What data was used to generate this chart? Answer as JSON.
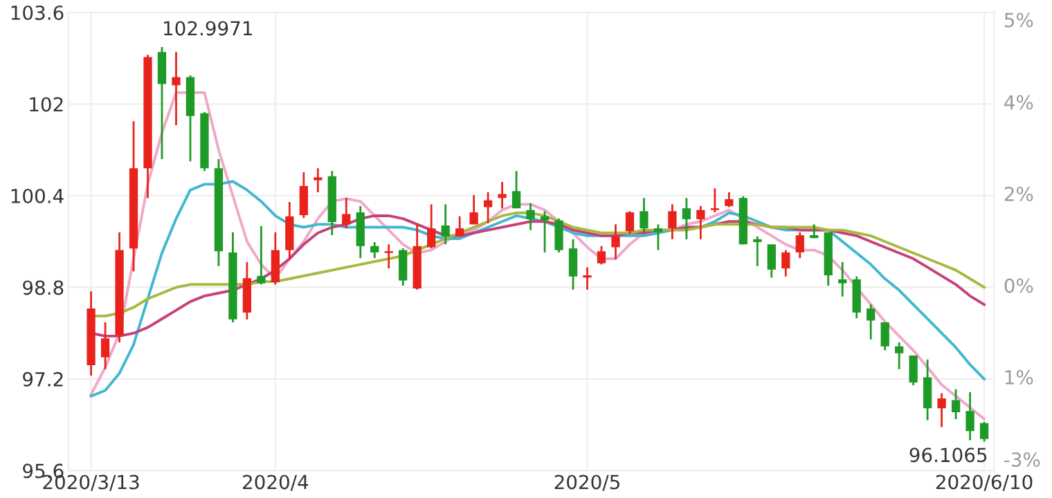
{
  "chart_data": {
    "type": "candlestick",
    "categories": [
      "2020/3/13",
      null,
      null,
      null,
      null,
      null,
      null,
      null,
      null,
      null,
      null,
      null,
      null,
      "2020/4",
      null,
      null,
      null,
      null,
      null,
      null,
      null,
      null,
      null,
      null,
      null,
      null,
      null,
      null,
      null,
      null,
      null,
      null,
      null,
      null,
      null,
      "2020/5",
      null,
      null,
      null,
      null,
      null,
      null,
      null,
      null,
      null,
      null,
      null,
      null,
      null,
      null,
      null,
      null,
      null,
      null,
      null,
      null,
      null,
      null,
      null,
      null,
      null,
      null,
      null,
      "2020/6/10"
    ],
    "ohlc": [
      [
        97.44,
        98.73,
        97.26,
        98.43
      ],
      [
        97.58,
        98.19,
        97.37,
        97.91
      ],
      [
        97.96,
        99.76,
        97.84,
        99.45
      ],
      [
        99.48,
        101.7,
        99.08,
        100.88
      ],
      [
        100.88,
        102.86,
        100.36,
        102.82
      ],
      [
        102.91,
        102.9971,
        101.04,
        102.35
      ],
      [
        102.33,
        102.91,
        101.63,
        102.47
      ],
      [
        102.47,
        102.5,
        101.0,
        101.79
      ],
      [
        101.84,
        101.86,
        100.83,
        100.88
      ],
      [
        100.88,
        101.04,
        99.17,
        99.43
      ],
      [
        99.41,
        99.76,
        98.19,
        98.24
      ],
      [
        98.36,
        99.24,
        98.24,
        98.96
      ],
      [
        99.0,
        99.87,
        98.85,
        98.87
      ],
      [
        98.89,
        99.76,
        98.85,
        99.45
      ],
      [
        99.45,
        100.29,
        99.29,
        100.04
      ],
      [
        100.06,
        100.81,
        100.01,
        100.57
      ],
      [
        100.67,
        100.88,
        100.46,
        100.72
      ],
      [
        100.74,
        100.83,
        99.71,
        99.94
      ],
      [
        99.9,
        100.36,
        99.83,
        100.08
      ],
      [
        100.11,
        100.22,
        99.31,
        99.52
      ],
      [
        99.52,
        99.59,
        99.31,
        99.41
      ],
      [
        99.4,
        99.55,
        99.13,
        99.43
      ],
      [
        99.45,
        99.48,
        98.83,
        98.92
      ],
      [
        98.78,
        99.9,
        98.76,
        99.52
      ],
      [
        99.5,
        100.25,
        99.48,
        99.83
      ],
      [
        99.88,
        100.25,
        99.55,
        99.69
      ],
      [
        99.69,
        100.04,
        99.69,
        99.83
      ],
      [
        99.9,
        100.41,
        99.9,
        100.11
      ],
      [
        100.2,
        100.46,
        99.92,
        100.32
      ],
      [
        100.36,
        100.64,
        100.18,
        100.43
      ],
      [
        100.48,
        100.83,
        100.18,
        100.18
      ],
      [
        100.15,
        100.27,
        99.8,
        99.99
      ],
      [
        100.04,
        100.13,
        99.41,
        99.97
      ],
      [
        99.97,
        100.0,
        99.41,
        99.45
      ],
      [
        99.48,
        99.64,
        98.76,
        98.99
      ],
      [
        98.97,
        99.15,
        98.76,
        99.01
      ],
      [
        99.22,
        99.52,
        99.2,
        99.43
      ],
      [
        99.5,
        99.9,
        99.29,
        99.69
      ],
      [
        99.78,
        100.13,
        99.73,
        100.11
      ],
      [
        100.13,
        100.36,
        99.76,
        99.83
      ],
      [
        99.83,
        99.9,
        99.45,
        99.76
      ],
      [
        99.83,
        100.25,
        99.64,
        100.13
      ],
      [
        100.18,
        100.36,
        99.64,
        99.99
      ],
      [
        99.99,
        100.22,
        99.64,
        100.15
      ],
      [
        100.15,
        100.53,
        100.11,
        100.18
      ],
      [
        100.22,
        100.46,
        100.2,
        100.34
      ],
      [
        100.36,
        100.39,
        99.55,
        99.55
      ],
      [
        99.64,
        99.69,
        99.17,
        99.59
      ],
      [
        99.55,
        99.55,
        98.97,
        99.11
      ],
      [
        99.13,
        99.45,
        98.99,
        99.41
      ],
      [
        99.41,
        99.76,
        99.31,
        99.71
      ],
      [
        99.71,
        99.9,
        99.66,
        99.66
      ],
      [
        99.76,
        99.76,
        98.83,
        99.01
      ],
      [
        98.94,
        99.24,
        98.64,
        98.87
      ],
      [
        98.94,
        98.99,
        98.26,
        98.36
      ],
      [
        98.43,
        98.5,
        97.89,
        98.22
      ],
      [
        98.19,
        98.19,
        97.7,
        97.77
      ],
      [
        97.77,
        97.84,
        97.37,
        97.65
      ],
      [
        97.61,
        97.61,
        97.09,
        97.14
      ],
      [
        97.23,
        97.54,
        96.48,
        96.69
      ],
      [
        96.69,
        96.95,
        96.36,
        96.86
      ],
      [
        96.83,
        97.02,
        96.5,
        96.62
      ],
      [
        96.64,
        96.97,
        96.13,
        96.29
      ],
      [
        96.43,
        96.45,
        96.1065,
        96.15
      ]
    ],
    "colors": [
      "#e8231c",
      "#e8231c",
      "#e8231c",
      "#e8231c",
      "#e8231c",
      "#1e9a26",
      "#e8231c",
      "#1e9a26",
      "#1e9a26",
      "#1e9a26",
      "#1e9a26",
      "#e8231c",
      "#1e9a26",
      "#e8231c",
      "#e8231c",
      "#e8231c",
      "#e8231c",
      "#1e9a26",
      "#e8231c",
      "#1e9a26",
      "#1e9a26",
      "#e8231c",
      "#1e9a26",
      "#e8231c",
      "#e8231c",
      "#1e9a26",
      "#e8231c",
      "#e8231c",
      "#e8231c",
      "#e8231c",
      "#1e9a26",
      "#1e9a26",
      "#1e9a26",
      "#1e9a26",
      "#1e9a26",
      "#e8231c",
      "#e8231c",
      "#e8231c",
      "#e8231c",
      "#1e9a26",
      "#1e9a26",
      "#e8231c",
      "#1e9a26",
      "#e8231c",
      "#e8231c",
      "#e8231c",
      "#1e9a26",
      "#1e9a26",
      "#1e9a26",
      "#e8231c",
      "#e8231c",
      "#1e9a26",
      "#1e9a26",
      "#1e9a26",
      "#1e9a26",
      "#1e9a26",
      "#1e9a26",
      "#1e9a26",
      "#1e9a26",
      "#1e9a26",
      "#e8231c",
      "#1e9a26",
      "#1e9a26",
      "#1e9a26"
    ],
    "series": [
      {
        "type": "line",
        "color": "#f0a8c8",
        "values": [
          96.93,
          97.4,
          98.0,
          99.3,
          100.6,
          101.5,
          102.2,
          102.2,
          102.2,
          101.2,
          100.4,
          99.6,
          99.2,
          98.95,
          99.3,
          99.6,
          100.0,
          100.3,
          100.35,
          100.3,
          100.05,
          99.8,
          99.55,
          99.4,
          99.45,
          99.6,
          99.75,
          99.8,
          99.95,
          100.15,
          100.25,
          100.25,
          100.15,
          99.95,
          99.75,
          99.5,
          99.3,
          99.3,
          99.55,
          99.75,
          99.8,
          99.8,
          99.9,
          99.95,
          100.05,
          100.15,
          100.0,
          99.85,
          99.7,
          99.55,
          99.45,
          99.45,
          99.35,
          99.1,
          98.8,
          98.5,
          98.2,
          97.95,
          97.7,
          97.4,
          97.1,
          96.9,
          96.7,
          96.5
        ]
      },
      {
        "type": "line",
        "color": "#3fb8d0",
        "values": [
          96.9,
          97.0,
          97.3,
          97.8,
          98.6,
          99.4,
          100.0,
          100.5,
          100.6,
          100.6,
          100.65,
          100.5,
          100.3,
          100.05,
          99.9,
          99.85,
          99.9,
          99.9,
          99.85,
          99.85,
          99.85,
          99.85,
          99.85,
          99.8,
          99.7,
          99.65,
          99.65,
          99.75,
          99.85,
          99.95,
          100.05,
          100.0,
          99.95,
          99.85,
          99.75,
          99.7,
          99.7,
          99.7,
          99.7,
          99.7,
          99.75,
          99.8,
          99.85,
          99.85,
          99.95,
          100.1,
          100.05,
          99.95,
          99.85,
          99.8,
          99.8,
          99.8,
          99.8,
          99.6,
          99.4,
          99.2,
          98.95,
          98.75,
          98.5,
          98.25,
          98.0,
          97.75,
          97.45,
          97.2
        ]
      },
      {
        "type": "line",
        "color": "#c8407a",
        "values": [
          98.0,
          97.95,
          97.95,
          98.0,
          98.1,
          98.25,
          98.4,
          98.55,
          98.65,
          98.7,
          98.75,
          98.85,
          98.95,
          99.1,
          99.3,
          99.55,
          99.75,
          99.85,
          99.9,
          100.0,
          100.05,
          100.05,
          100.0,
          99.9,
          99.8,
          99.7,
          99.7,
          99.75,
          99.8,
          99.85,
          99.9,
          99.95,
          99.95,
          99.9,
          99.8,
          99.75,
          99.7,
          99.7,
          99.75,
          99.75,
          99.8,
          99.8,
          99.85,
          99.85,
          99.9,
          99.95,
          99.95,
          99.9,
          99.85,
          99.85,
          99.8,
          99.8,
          99.8,
          99.75,
          99.7,
          99.6,
          99.5,
          99.4,
          99.3,
          99.15,
          99.0,
          98.85,
          98.65,
          98.5
        ]
      },
      {
        "type": "line",
        "color": "#a8b840",
        "values": [
          98.3,
          98.3,
          98.35,
          98.45,
          98.6,
          98.7,
          98.8,
          98.85,
          98.85,
          98.85,
          98.85,
          98.85,
          98.9,
          98.9,
          98.95,
          99.0,
          99.05,
          99.1,
          99.15,
          99.2,
          99.25,
          99.3,
          99.35,
          99.45,
          99.55,
          99.65,
          99.75,
          99.85,
          99.95,
          100.05,
          100.1,
          100.1,
          100.05,
          99.95,
          99.85,
          99.8,
          99.75,
          99.75,
          99.75,
          99.8,
          99.8,
          99.8,
          99.8,
          99.85,
          99.9,
          99.9,
          99.9,
          99.9,
          99.85,
          99.85,
          99.85,
          99.85,
          99.8,
          99.8,
          99.75,
          99.7,
          99.6,
          99.5,
          99.4,
          99.3,
          99.2,
          99.1,
          98.95,
          98.8
        ]
      }
    ],
    "ylim": [
      95.6,
      103.6
    ],
    "yticks": [
      95.6,
      97.2,
      98.8,
      100.4,
      102,
      103.6
    ],
    "annotations": [
      "102.9971",
      "96.1065",
      "5%",
      "4%",
      "2%",
      "0%",
      "1%",
      "-3%"
    ],
    "grid": true
  }
}
